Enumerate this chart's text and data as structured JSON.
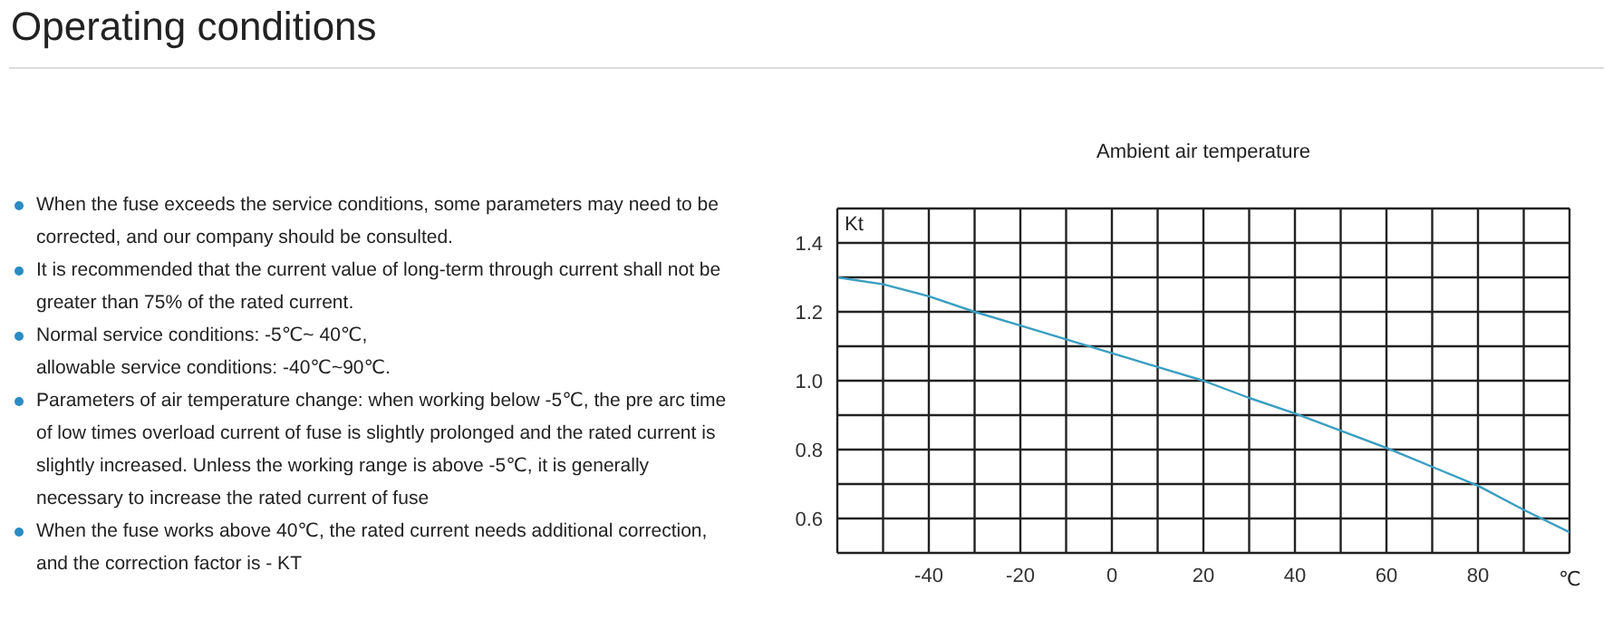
{
  "chart_data": {
    "type": "line",
    "title": "Operating conditions",
    "subtitle": "Ambient air temperature",
    "xlabel": "℃",
    "ylabel": "Kt",
    "annotations": [
      "When the fuse exceeds the service conditions, some parameters may need to be corrected, and our company should be consulted.",
      "It is recommended that the current value of long-term through current shall not be greater than 75% of the rated current.",
      "Normal service conditions: -5℃~ 40℃,\nallowable service conditions: -40℃~90℃.",
      "Parameters of air temperature change: when working below -5℃, the pre arc time of low times overload current of fuse is slightly prolonged and the rated current is slightly increased. Unless the working range is above -5℃, it is generally necessary to increase the rated current of fuse",
      "When the fuse works above 40℃, the rated current needs additional correction, and the correction factor is - KT"
    ],
    "x": [
      -60,
      -50,
      -40,
      -30,
      -20,
      -10,
      0,
      10,
      20,
      30,
      40,
      50,
      60,
      70,
      80,
      90,
      100
    ],
    "series": [
      {
        "color": "#3a9fc0",
        "values": [
          1.3,
          1.28,
          1.245,
          1.2,
          1.16,
          1.12,
          1.08,
          1.04,
          1.0,
          0.95,
          0.905,
          0.855,
          0.805,
          0.75,
          0.695,
          0.625,
          0.56
        ]
      }
    ],
    "xlim": [
      -60,
      100
    ],
    "xticks": [
      {
        "value": -60,
        "label": null
      },
      {
        "value": -50,
        "label": null
      },
      -40,
      {
        "value": -30,
        "label": null
      },
      -20,
      {
        "value": -10,
        "label": null
      },
      0,
      {
        "value": 10,
        "label": null
      },
      20,
      {
        "value": 30,
        "label": null
      },
      40,
      {
        "value": 50,
        "label": null
      },
      60,
      {
        "value": 70,
        "label": null
      },
      80,
      {
        "value": 90,
        "label": null
      },
      {
        "value": 100,
        "label": null
      }
    ],
    "ylim": [
      0.5,
      1.5
    ],
    "yticks": [
      {
        "value": 0.5,
        "label": null
      },
      {
        "value": 0.6,
        "label": "0.6"
      },
      {
        "value": 0.7,
        "label": null
      },
      {
        "value": 0.8,
        "label": "0.8"
      },
      {
        "value": 0.9,
        "label": null
      },
      {
        "value": 1,
        "label": "1.0"
      },
      {
        "value": 1.1,
        "label": null
      },
      {
        "value": 1.2,
        "label": "1.2"
      },
      {
        "value": 1.3,
        "label": null
      },
      {
        "value": 1.4,
        "label": "1.4"
      },
      {
        "value": 1.5,
        "label": null
      }
    ],
    "grid": true,
    "marker": "none",
    "line_style": "solid",
    "legend": false
  }
}
